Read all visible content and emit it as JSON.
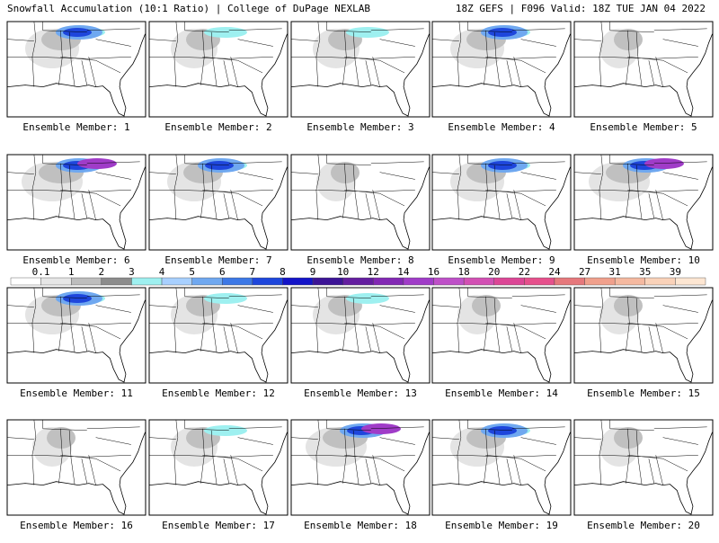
{
  "header": {
    "title_left": "Snowfall Accumulation (10:1 Ratio) | College of DuPage NEXLAB",
    "title_right": "18Z GEFS | F096 Valid: 18Z TUE JAN 04 2022"
  },
  "panels": [
    "Ensemble Member: 1",
    "Ensemble Member: 2",
    "Ensemble Member: 3",
    "Ensemble Member: 4",
    "Ensemble Member: 5",
    "Ensemble Member: 6",
    "Ensemble Member: 7",
    "Ensemble Member: 8",
    "Ensemble Member: 9",
    "Ensemble Member: 10",
    "Ensemble Member: 11",
    "Ensemble Member: 12",
    "Ensemble Member: 13",
    "Ensemble Member: 14",
    "Ensemble Member: 15",
    "Ensemble Member: 16",
    "Ensemble Member: 17",
    "Ensemble Member: 18",
    "Ensemble Member: 19",
    "Ensemble Member: 20"
  ],
  "colorbar": {
    "labels": [
      0.1,
      1,
      2,
      3,
      4,
      5,
      6,
      7,
      8,
      9,
      10,
      12,
      14,
      16,
      18,
      20,
      22,
      24,
      27,
      31,
      35,
      39
    ],
    "colors": [
      "#ffffff",
      "#e6e6e6",
      "#bdbdbd",
      "#8c8c8c",
      "#9ef0f0",
      "#a8d0ff",
      "#6fa8f0",
      "#3c78e6",
      "#1e46dc",
      "#1414c8",
      "#3c1496",
      "#641ea0",
      "#8228b4",
      "#a03cc8",
      "#be50c8",
      "#d250b4",
      "#dc4696",
      "#e6508c",
      "#e6787c",
      "#f0a08c",
      "#f5b9a0",
      "#fad2b9",
      "#fde6d2"
    ]
  }
}
